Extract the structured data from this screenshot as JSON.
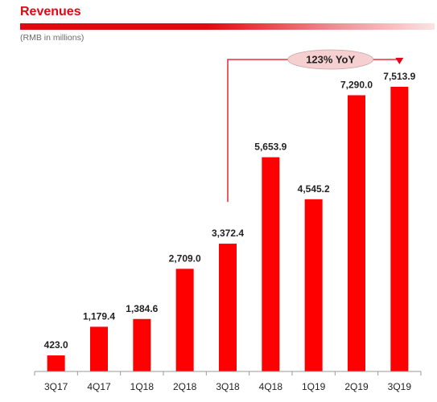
{
  "header": {
    "title": "Revenues",
    "subtitle": "(RMB in millions)"
  },
  "colors": {
    "accent": "#e30613",
    "bar": "#ff0000",
    "callout_fill": "#f6d0d0"
  },
  "chart_data": {
    "type": "bar",
    "categories": [
      "3Q17",
      "4Q17",
      "1Q18",
      "2Q18",
      "3Q18",
      "4Q18",
      "1Q19",
      "2Q19",
      "3Q19"
    ],
    "values": [
      423.0,
      1179.4,
      1384.6,
      2709.0,
      3372.4,
      5653.9,
      4545.2,
      7290.0,
      7513.9
    ],
    "data_labels": [
      "423.0",
      "1,179.4",
      "1,384.6",
      "2,709.0",
      "3,372.4",
      "5,653.9",
      "4,545.2",
      "7,290.0",
      "7,513.9"
    ],
    "title": "Revenues",
    "subtitle": "(RMB in millions)",
    "xlabel": "",
    "ylabel": "",
    "ylim": [
      0,
      8000
    ],
    "grid": false,
    "legend": "none",
    "annotation": {
      "text": "123% YoY",
      "from": "3Q18",
      "to": "3Q19"
    }
  }
}
